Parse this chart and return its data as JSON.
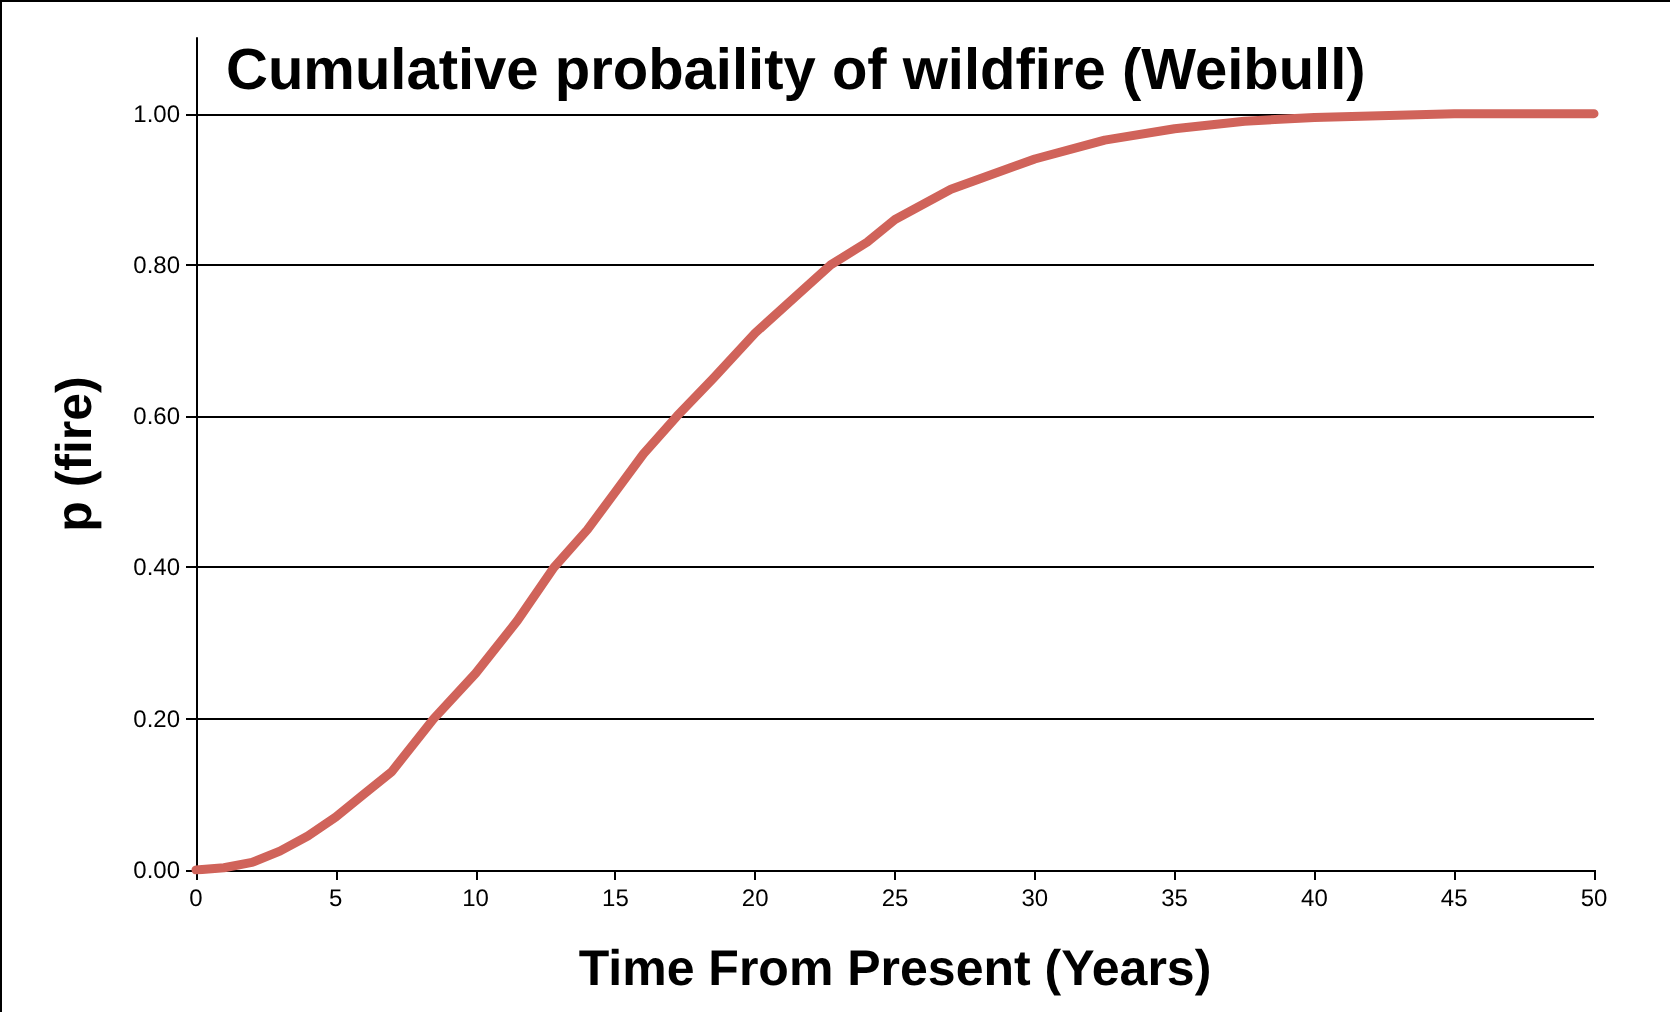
{
  "chart_data": {
    "type": "line",
    "title": "Cumulative probaility of wildfire (Weibull)",
    "xlabel": "Time From Present (Years)",
    "ylabel": "p (fire)",
    "series": [
      {
        "color": "#d0635a",
        "x": [
          0,
          1,
          2,
          3,
          4,
          5,
          6,
          7,
          8.5,
          10,
          11.5,
          12.8,
          14,
          15,
          16,
          17.2,
          18.5,
          20,
          21.5,
          22.7,
          24,
          25,
          27,
          30,
          32.5,
          35,
          37.5,
          40,
          45,
          50
        ],
        "values": [
          0,
          0.003,
          0.01,
          0.025,
          0.045,
          0.07,
          0.1,
          0.13,
          0.2,
          0.26,
          0.33,
          0.4,
          0.45,
          0.5,
          0.55,
          0.6,
          0.65,
          0.71,
          0.76,
          0.8,
          0.83,
          0.86,
          0.9,
          0.94,
          0.965,
          0.98,
          0.99,
          0.995,
          1.0,
          1.0
        ]
      }
    ],
    "xlim": [
      0,
      50
    ],
    "xticks": [
      0,
      5,
      10,
      15,
      20,
      25,
      30,
      35,
      40,
      45,
      50
    ],
    "ylim": [
      0,
      1.1
    ],
    "yticks": [
      {
        "value": 0,
        "label": "0.00"
      },
      {
        "value": 0.2,
        "label": "0.20"
      },
      {
        "value": 0.4,
        "label": "0.40"
      },
      {
        "value": 0.6,
        "label": "0.60"
      },
      {
        "value": 0.8,
        "label": "0.80"
      },
      {
        "value": 1,
        "label": "1.00"
      }
    ],
    "grid": "y",
    "marker": "none",
    "line_style": "solid"
  }
}
